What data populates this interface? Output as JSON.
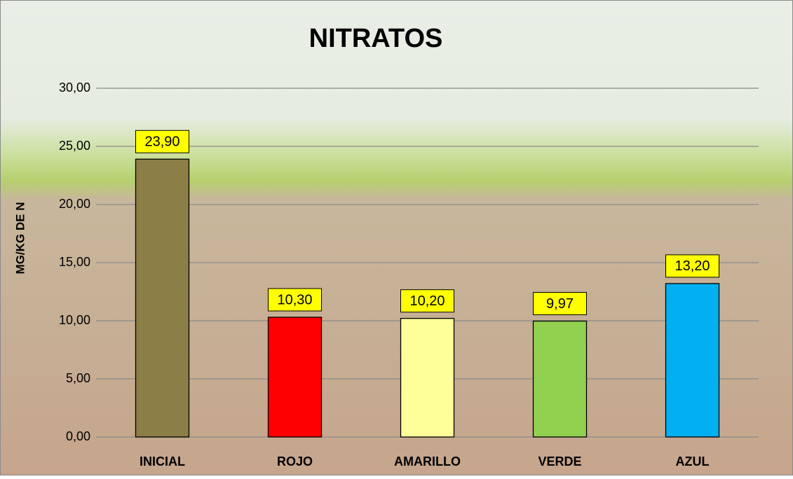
{
  "chart_data": {
    "type": "bar",
    "title": "NITRATOS",
    "y_label": "MG/KG DE N",
    "categories": [
      "INICIAL",
      "ROJO",
      "AMARILLO",
      "VERDE",
      "AZUL"
    ],
    "values": [
      23.9,
      10.3,
      10.2,
      9.97,
      13.2
    ],
    "value_labels": [
      "23,90",
      "10,30",
      "10,20",
      "9,97",
      "13,20"
    ],
    "colors": [
      "#8b7e46",
      "#ff0000",
      "#ffff99",
      "#92d050",
      "#00b0f0"
    ],
    "ylim": [
      0,
      30
    ],
    "yticks": [
      {
        "value": 0,
        "label": "0,00"
      },
      {
        "value": 5,
        "label": "5,00"
      },
      {
        "value": 10,
        "label": "10,00"
      },
      {
        "value": 15,
        "label": "15,00"
      },
      {
        "value": 20,
        "label": "20,00"
      },
      {
        "value": 25,
        "label": "25,00"
      },
      {
        "value": 30,
        "label": "30,00"
      }
    ],
    "grid": true
  }
}
